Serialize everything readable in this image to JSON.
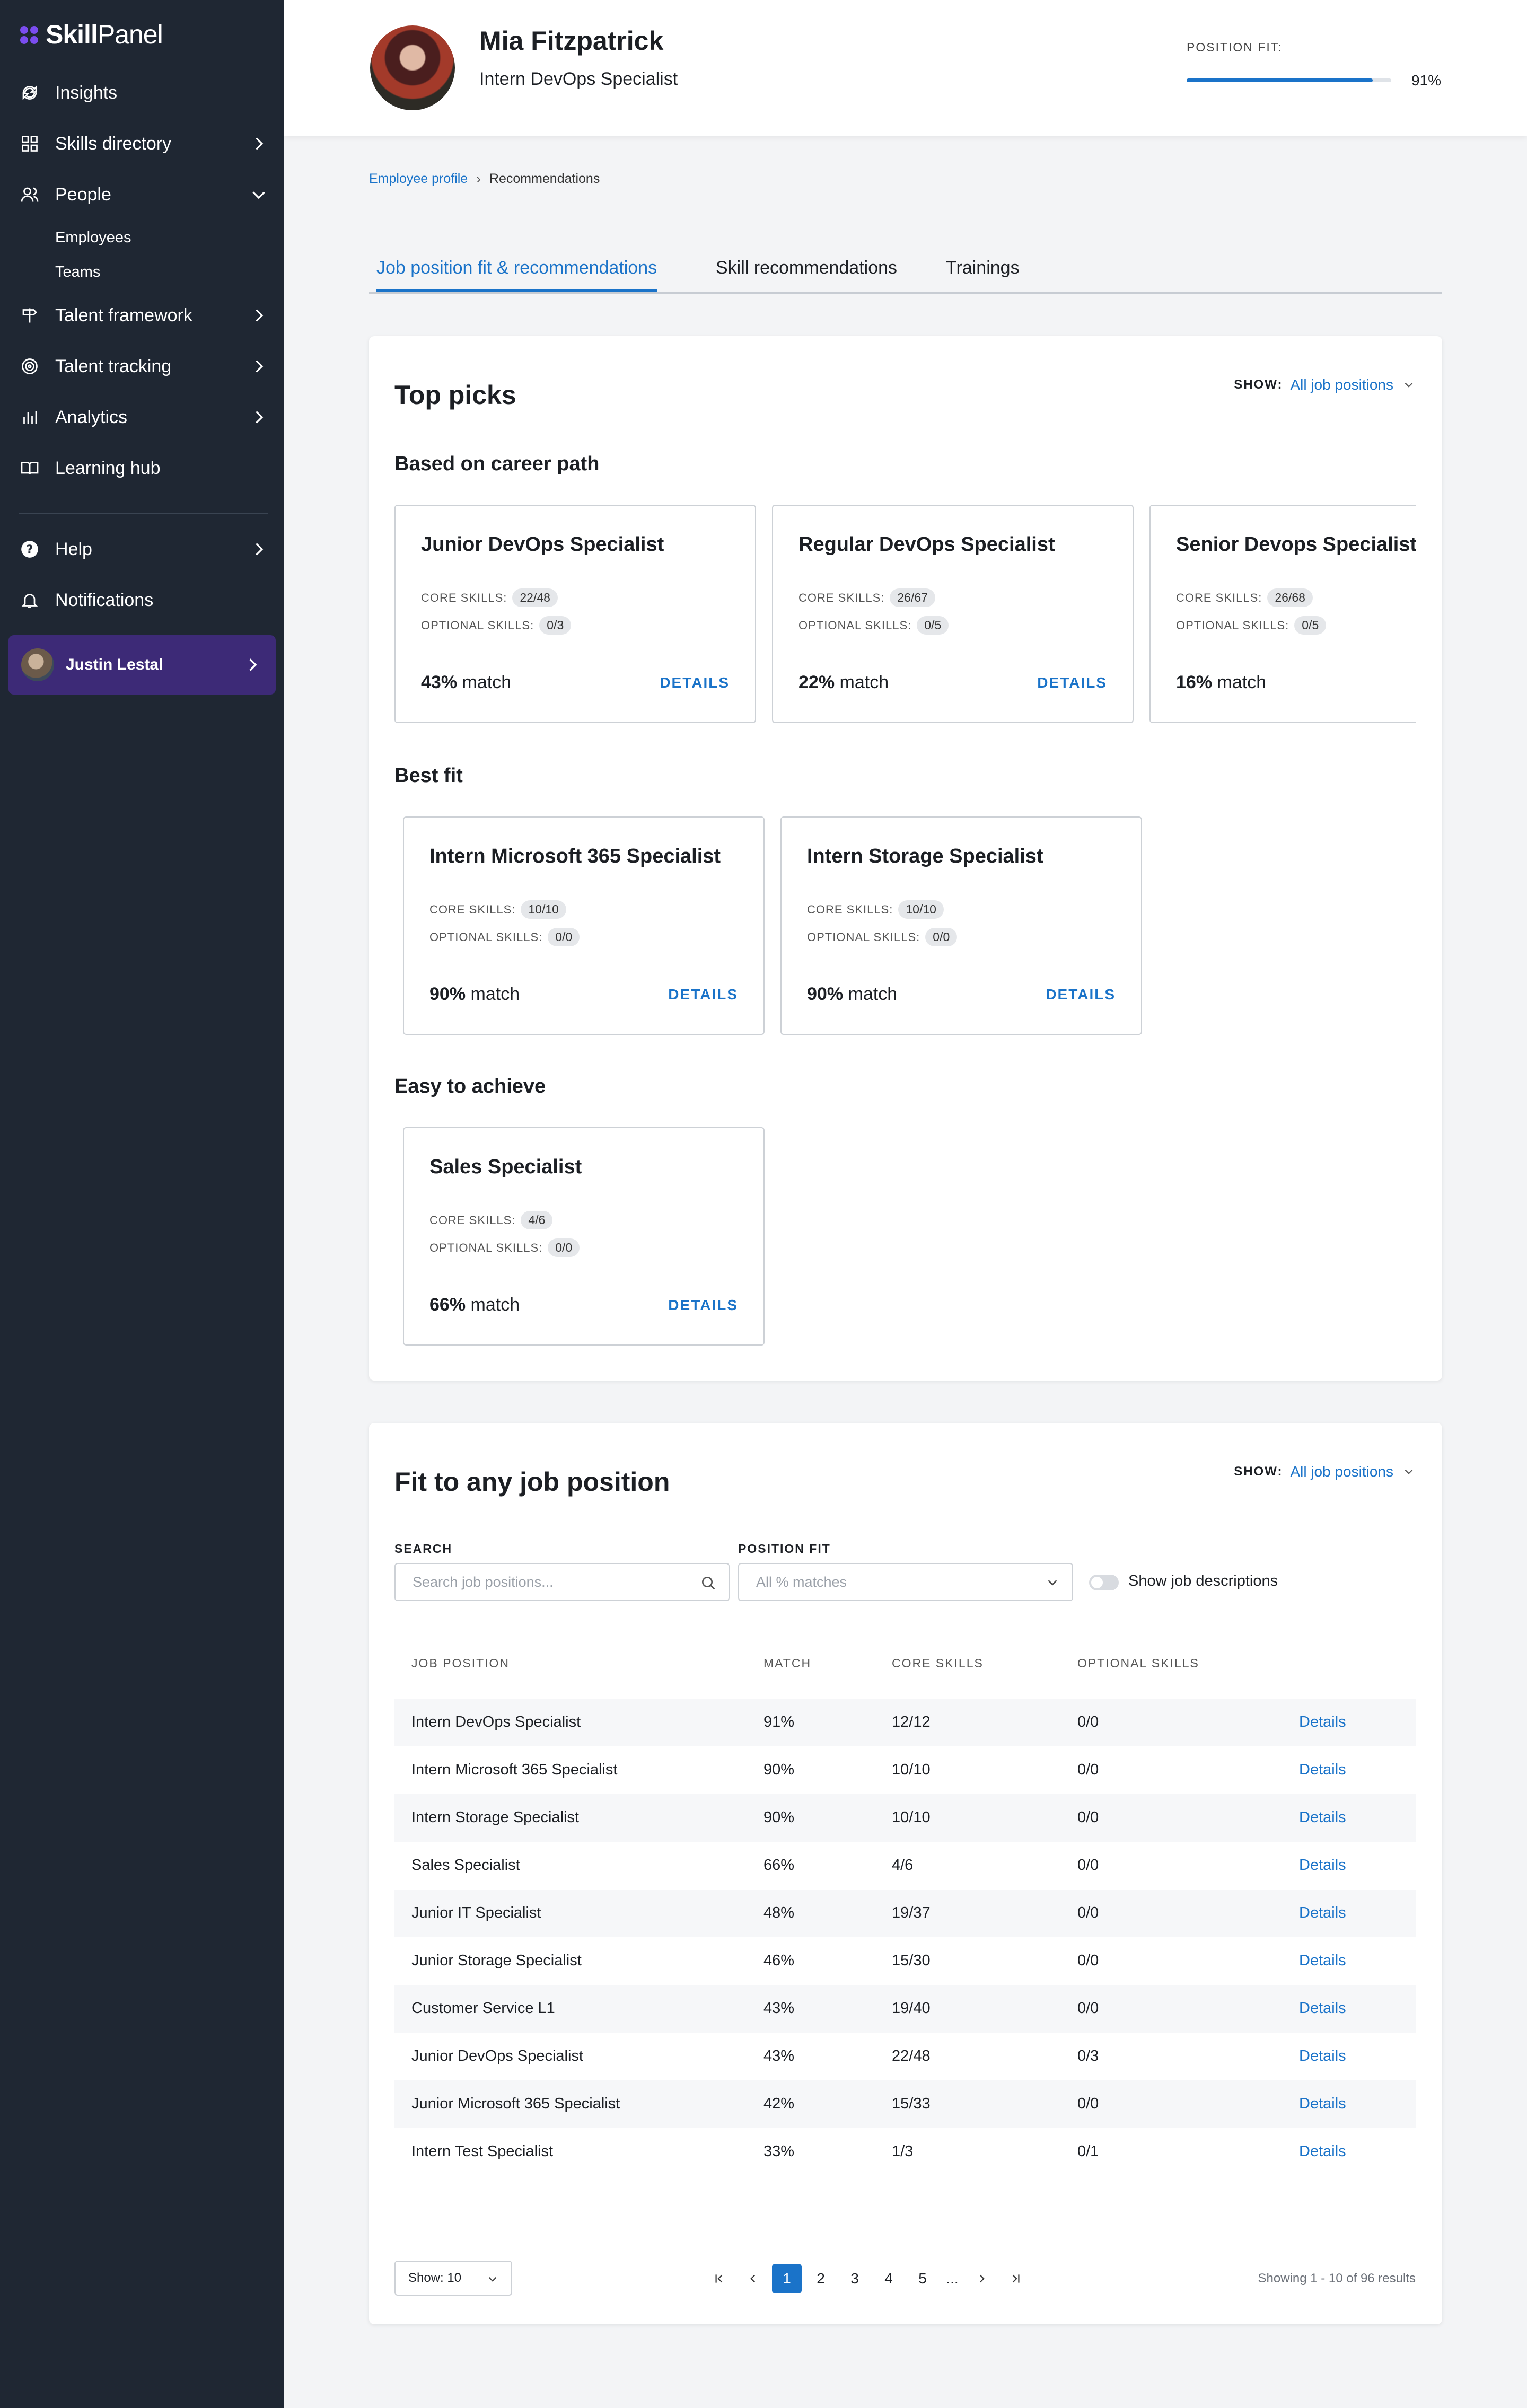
{
  "app": {
    "brand_bold": "Skill",
    "brand_rest": "Panel"
  },
  "sidebar": {
    "items": [
      {
        "label": "Insights",
        "icon": "refresh-icon"
      },
      {
        "label": "Skills directory",
        "icon": "grid-icon"
      },
      {
        "label": "People",
        "icon": "people-icon",
        "expanded": true
      },
      {
        "label": "Talent framework",
        "icon": "signpost-icon"
      },
      {
        "label": "Talent tracking",
        "icon": "target-icon"
      },
      {
        "label": "Analytics",
        "icon": "bar-chart-icon"
      },
      {
        "label": "Learning hub",
        "icon": "book-icon"
      }
    ],
    "sub_items": [
      "Employees",
      "Teams"
    ],
    "bottom_items": [
      {
        "label": "Help",
        "icon": "question-icon"
      },
      {
        "label": "Notifications",
        "icon": "bell-icon"
      }
    ],
    "user": {
      "name": "Justin Lestal"
    }
  },
  "header": {
    "name": "Mia Fitzpatrick",
    "role": "Intern DevOps Specialist",
    "fit_label": "POSITION FIT:",
    "fit_value": "91%",
    "fit_fraction": 0.91
  },
  "breadcrumb": {
    "parent": "Employee profile",
    "current": "Recommendations"
  },
  "tabs": [
    {
      "label": "Job position fit & recommendations",
      "active": true
    },
    {
      "label": "Skill recommendations",
      "active": false
    },
    {
      "label": "Trainings",
      "active": false
    }
  ],
  "top_picks": {
    "title": "Top picks",
    "show_label": "SHOW:",
    "show_value": "All job positions",
    "core_label": "CORE SKILLS:",
    "optional_label": "OPTIONAL SKILLS:",
    "match_suffix": "match",
    "details_label": "DETAILS",
    "sections": [
      {
        "title": "Based on career path",
        "cards": [
          {
            "title": "Junior DevOps Specialist",
            "core": "22/48",
            "optional": "0/3",
            "match": "43%"
          },
          {
            "title": "Regular DevOps Specialist",
            "core": "26/67",
            "optional": "0/5",
            "match": "22%"
          },
          {
            "title": "Senior Devops Specialist",
            "core": "26/68",
            "optional": "0/5",
            "match": "16%"
          }
        ]
      },
      {
        "title": "Best fit",
        "cards": [
          {
            "title": "Intern Microsoft 365 Specialist",
            "core": "10/10",
            "optional": "0/0",
            "match": "90%"
          },
          {
            "title": "Intern Storage Specialist",
            "core": "10/10",
            "optional": "0/0",
            "match": "90%"
          }
        ]
      },
      {
        "title": "Easy to achieve",
        "cards": [
          {
            "title": "Sales Specialist",
            "core": "4/6",
            "optional": "0/0",
            "match": "66%"
          }
        ]
      }
    ]
  },
  "fit_any": {
    "title": "Fit to any job position",
    "show_label": "SHOW:",
    "show_value": "All job positions",
    "search_label": "SEARCH",
    "search_placeholder": "Search job positions...",
    "position_fit_label": "POSITION FIT",
    "position_fit_value": "All % matches",
    "toggle_label": "Show job descriptions",
    "columns": [
      "JOB POSITION",
      "MATCH",
      "CORE SKILLS",
      "OPTIONAL SKILLS"
    ],
    "details_label": "Details",
    "rows": [
      {
        "position": "Intern DevOps Specialist",
        "match": "91%",
        "core": "12/12",
        "optional": "0/0"
      },
      {
        "position": "Intern Microsoft 365 Specialist",
        "match": "90%",
        "core": "10/10",
        "optional": "0/0"
      },
      {
        "position": "Intern Storage Specialist",
        "match": "90%",
        "core": "10/10",
        "optional": "0/0"
      },
      {
        "position": "Sales Specialist",
        "match": "66%",
        "core": "4/6",
        "optional": "0/0"
      },
      {
        "position": "Junior IT Specialist",
        "match": "48%",
        "core": "19/37",
        "optional": "0/0"
      },
      {
        "position": "Junior Storage Specialist",
        "match": "46%",
        "core": "15/30",
        "optional": "0/0"
      },
      {
        "position": "Customer Service L1",
        "match": "43%",
        "core": "19/40",
        "optional": "0/0"
      },
      {
        "position": "Junior DevOps Specialist",
        "match": "43%",
        "core": "22/48",
        "optional": "0/3"
      },
      {
        "position": "Junior Microsoft 365 Specialist",
        "match": "42%",
        "core": "15/33",
        "optional": "0/0"
      },
      {
        "position": "Intern Test Specialist",
        "match": "33%",
        "core": "1/3",
        "optional": "0/1"
      }
    ],
    "page_size": "Show: 10",
    "pages": [
      "1",
      "2",
      "3",
      "4",
      "5",
      "..."
    ],
    "current_page": "1",
    "results_text": "Showing 1 - 10 of 96 results"
  },
  "colors": {
    "accent": "#1a73c9",
    "sidebar": "#1f2733",
    "user_box": "#3d2a77",
    "brand_dot": "#7b4df0"
  }
}
